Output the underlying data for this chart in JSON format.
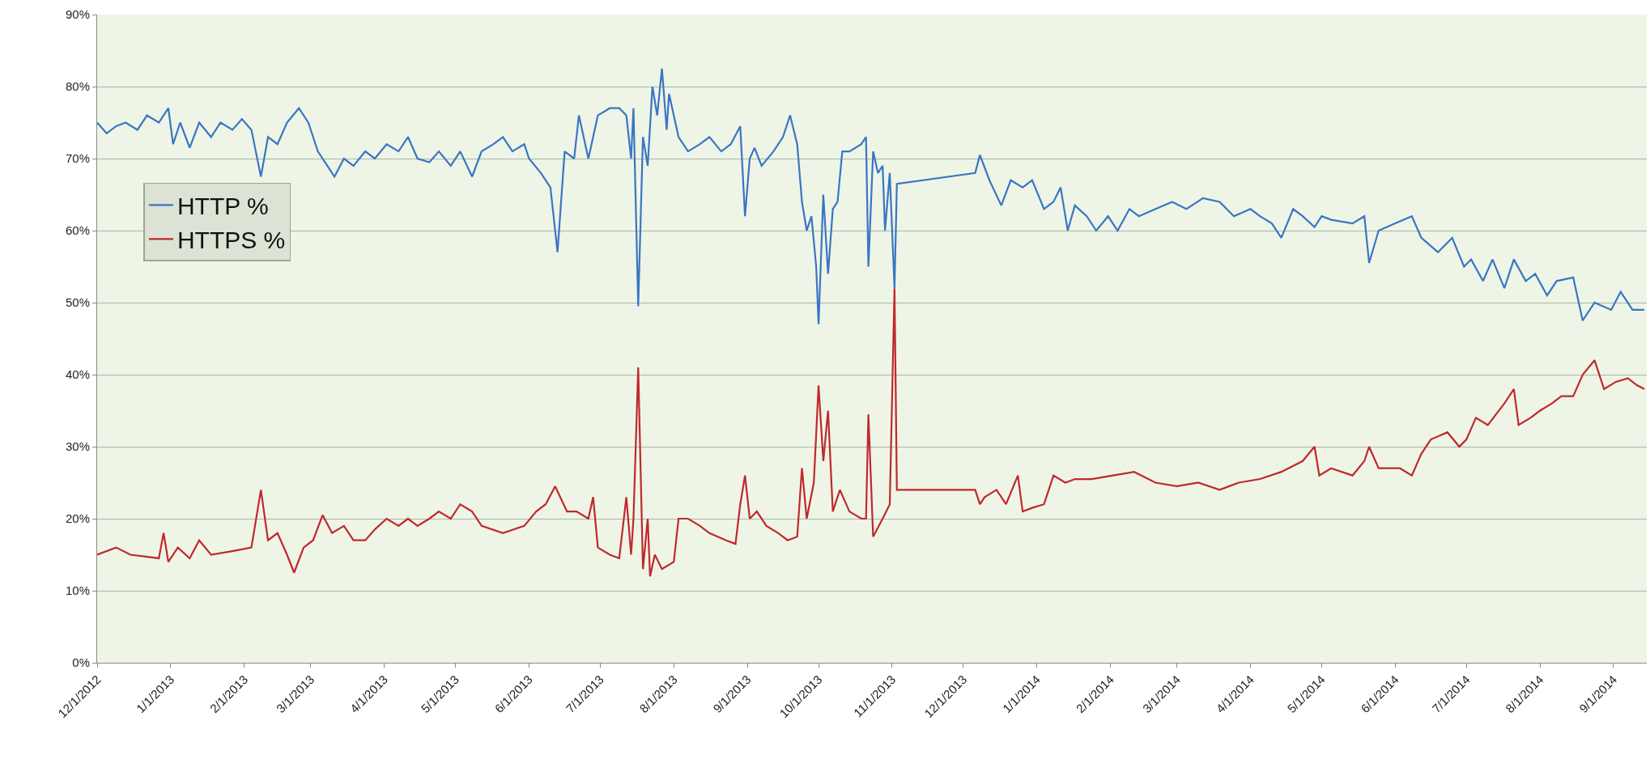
{
  "chart_data": {
    "type": "line",
    "x": [
      "2012-12-01",
      "2012-12-05",
      "2012-12-09",
      "2012-12-13",
      "2012-12-18",
      "2012-12-22",
      "2012-12-27",
      "2012-12-31",
      "2013-01-02",
      "2013-01-05",
      "2013-01-09",
      "2013-01-13",
      "2013-01-18",
      "2013-01-22",
      "2013-01-27",
      "2013-01-31",
      "2013-02-04",
      "2013-02-08",
      "2013-02-11",
      "2013-02-15",
      "2013-02-19",
      "2013-02-24",
      "2013-02-28",
      "2013-03-04",
      "2013-03-08",
      "2013-03-11",
      "2013-03-15",
      "2013-03-19",
      "2013-03-24",
      "2013-03-28",
      "2013-04-02",
      "2013-04-07",
      "2013-04-11",
      "2013-04-15",
      "2013-04-20",
      "2013-04-24",
      "2013-04-29",
      "2013-05-03",
      "2013-05-08",
      "2013-05-12",
      "2013-05-17",
      "2013-05-21",
      "2013-05-25",
      "2013-05-30",
      "2013-06-01",
      "2013-06-06",
      "2013-06-10",
      "2013-06-13",
      "2013-06-16",
      "2013-06-20",
      "2013-06-22",
      "2013-06-26",
      "2013-06-30",
      "2013-07-05",
      "2013-07-09",
      "2013-07-12",
      "2013-07-14",
      "2013-07-15",
      "2013-07-17",
      "2013-07-19",
      "2013-07-21",
      "2013-07-23",
      "2013-07-25",
      "2013-07-27",
      "2013-07-29",
      "2013-07-30",
      "2013-08-03",
      "2013-08-07",
      "2013-08-12",
      "2013-08-16",
      "2013-08-21",
      "2013-08-25",
      "2013-08-29",
      "2013-08-31",
      "2013-09-02",
      "2013-09-04",
      "2013-09-07",
      "2013-09-12",
      "2013-09-16",
      "2013-09-19",
      "2013-09-22",
      "2013-09-24",
      "2013-09-26",
      "2013-09-28",
      "2013-09-30",
      "2013-10-01",
      "2013-10-03",
      "2013-10-05",
      "2013-10-07",
      "2013-10-09",
      "2013-10-11",
      "2013-10-14",
      "2013-10-19",
      "2013-10-21",
      "2013-10-22",
      "2013-10-24",
      "2013-10-26",
      "2013-10-28",
      "2013-10-29",
      "2013-10-31",
      "2013-11-02",
      "2013-11-03",
      "2013-12-06",
      "2013-12-08",
      "2013-12-12",
      "2013-12-17",
      "2013-12-21",
      "2013-12-26",
      "2013-12-30",
      "2014-01-04",
      "2014-01-08",
      "2014-01-11",
      "2014-01-14",
      "2014-01-17",
      "2014-01-22",
      "2014-01-26",
      "2014-01-31",
      "2014-02-04",
      "2014-02-09",
      "2014-02-13",
      "2014-02-20",
      "2014-02-27",
      "2014-03-05",
      "2014-03-12",
      "2014-03-19",
      "2014-03-25",
      "2014-04-01",
      "2014-04-05",
      "2014-04-10",
      "2014-04-14",
      "2014-04-19",
      "2014-04-23",
      "2014-04-28",
      "2014-05-01",
      "2014-05-05",
      "2014-05-14",
      "2014-05-19",
      "2014-05-21",
      "2014-05-25",
      "2014-06-01",
      "2014-06-08",
      "2014-06-12",
      "2014-06-19",
      "2014-06-25",
      "2014-06-30",
      "2014-07-03",
      "2014-07-08",
      "2014-07-12",
      "2014-07-17",
      "2014-07-21",
      "2014-07-26",
      "2014-07-30",
      "2014-08-04",
      "2014-08-08",
      "2014-08-15",
      "2014-08-19",
      "2014-08-24",
      "2014-08-31",
      "2014-09-04",
      "2014-09-09",
      "2014-09-14"
    ],
    "series": [
      {
        "name": "HTTP %",
        "color": "#3a75c4",
        "values": [
          75,
          73.5,
          74.5,
          75,
          74,
          76,
          75,
          77,
          72,
          75,
          71.5,
          75,
          73,
          75,
          74,
          75.5,
          74,
          67.5,
          73,
          72,
          75,
          77,
          75,
          71,
          69,
          67.5,
          70,
          69,
          71,
          70,
          72,
          71,
          73,
          70,
          69.5,
          71,
          69,
          71,
          67.5,
          71,
          72,
          73,
          71,
          72,
          70,
          68,
          66,
          57,
          71,
          70,
          76,
          70,
          76,
          77,
          77,
          76,
          70,
          77,
          49.5,
          73,
          69,
          80,
          76,
          82.5,
          74,
          79,
          73,
          71,
          72,
          73,
          71,
          72,
          74.5,
          62,
          70,
          71.5,
          69,
          71,
          73,
          76,
          72,
          64,
          60,
          62,
          55,
          47,
          65,
          54,
          63,
          64,
          71,
          71,
          72,
          73,
          55,
          71,
          68,
          69,
          60,
          68,
          52,
          66.5,
          68,
          70.5,
          67,
          63.5,
          67,
          66,
          67,
          63,
          64,
          66,
          60,
          63.5,
          62,
          60,
          62,
          60,
          63,
          62,
          63,
          64,
          63,
          64.5,
          64,
          62,
          63,
          62,
          61,
          59,
          63,
          62,
          60.5,
          62,
          61.5,
          61,
          62,
          55.5,
          60,
          61,
          62,
          59,
          57,
          59,
          55,
          56,
          53,
          56,
          52,
          56,
          53,
          54,
          51,
          53,
          53.5,
          47.5,
          50,
          49,
          51.5,
          49,
          49
        ]
      },
      {
        "name": "HTTPS %",
        "color": "#c0282d",
        "x": [
          "2012-12-01",
          "2012-12-09",
          "2012-12-15",
          "2012-12-27",
          "2012-12-29",
          "2012-12-31",
          "2013-01-04",
          "2013-01-09",
          "2013-01-13",
          "2013-01-18",
          "2013-01-27",
          "2013-02-04",
          "2013-02-08",
          "2013-02-11",
          "2013-02-15",
          "2013-02-19",
          "2013-02-22",
          "2013-02-26",
          "2013-03-02",
          "2013-03-06",
          "2013-03-10",
          "2013-03-15",
          "2013-03-19",
          "2013-03-24",
          "2013-03-28",
          "2013-04-02",
          "2013-04-07",
          "2013-04-11",
          "2013-04-15",
          "2013-04-20",
          "2013-04-24",
          "2013-04-29",
          "2013-05-03",
          "2013-05-08",
          "2013-05-12",
          "2013-05-21",
          "2013-05-30",
          "2013-06-04",
          "2013-06-08",
          "2013-06-12",
          "2013-06-17",
          "2013-06-21",
          "2013-06-26",
          "2013-06-28",
          "2013-06-30",
          "2013-07-05",
          "2013-07-09",
          "2013-07-12",
          "2013-07-14",
          "2013-07-15",
          "2013-07-17",
          "2013-07-19",
          "2013-07-21",
          "2013-07-22",
          "2013-07-24",
          "2013-07-27",
          "2013-08-01",
          "2013-08-03",
          "2013-08-07",
          "2013-08-12",
          "2013-08-16",
          "2013-08-23",
          "2013-08-27",
          "2013-08-29",
          "2013-08-31",
          "2013-09-02",
          "2013-09-05",
          "2013-09-09",
          "2013-09-14",
          "2013-09-18",
          "2013-09-22",
          "2013-09-24",
          "2013-09-26",
          "2013-09-29",
          "2013-10-01",
          "2013-10-03",
          "2013-10-05",
          "2013-10-07",
          "2013-10-10",
          "2013-10-14",
          "2013-10-19",
          "2013-10-21",
          "2013-10-22",
          "2013-10-24",
          "2013-10-28",
          "2013-10-31",
          "2013-11-02",
          "2013-11-03",
          "2013-12-06",
          "2013-12-08",
          "2013-12-10",
          "2013-12-15",
          "2013-12-19",
          "2013-12-24",
          "2013-12-26",
          "2013-12-30",
          "2014-01-04",
          "2014-01-08",
          "2014-01-13",
          "2014-01-17",
          "2014-01-24",
          "2014-02-02",
          "2014-02-11",
          "2014-02-20",
          "2014-03-01",
          "2014-03-10",
          "2014-03-19",
          "2014-03-27",
          "2014-04-05",
          "2014-04-14",
          "2014-04-23",
          "2014-04-28",
          "2014-04-30",
          "2014-05-05",
          "2014-05-14",
          "2014-05-19",
          "2014-05-21",
          "2014-05-25",
          "2014-06-03",
          "2014-06-08",
          "2014-06-12",
          "2014-06-16",
          "2014-06-23",
          "2014-06-28",
          "2014-07-01",
          "2014-07-05",
          "2014-07-10",
          "2014-07-17",
          "2014-07-21",
          "2014-07-23",
          "2014-07-28",
          "2014-08-01",
          "2014-08-06",
          "2014-08-10",
          "2014-08-15",
          "2014-08-19",
          "2014-08-24",
          "2014-08-28",
          "2014-09-02",
          "2014-09-07",
          "2014-09-11",
          "2014-09-14"
        ],
        "values": [
          15,
          16,
          15,
          14.5,
          18,
          14,
          16,
          14.5,
          17,
          15,
          15.5,
          16,
          24,
          17,
          18,
          15,
          12.5,
          16,
          17,
          20.5,
          18,
          19,
          17,
          17,
          18.5,
          20,
          19,
          20,
          19,
          20,
          21,
          20,
          22,
          21,
          19,
          18,
          19,
          21,
          22,
          24.5,
          21,
          21,
          20,
          23,
          16,
          15,
          14.5,
          23,
          15,
          20,
          41,
          13,
          20,
          12,
          15,
          13,
          14,
          20,
          20,
          19,
          18,
          17,
          16.5,
          22,
          26,
          20,
          21,
          19,
          18,
          17,
          17.5,
          27,
          20,
          25,
          38.5,
          28,
          35,
          21,
          24,
          21,
          20,
          20,
          34.5,
          17.5,
          20,
          22,
          52,
          24,
          24,
          22,
          23,
          24,
          22,
          26,
          21,
          21.5,
          22,
          26,
          25,
          25.5,
          25.5,
          26,
          26.5,
          25,
          24.5,
          25,
          24,
          25,
          25.5,
          26.5,
          28,
          30,
          26,
          27,
          26,
          28,
          30,
          27,
          27,
          26,
          29,
          31,
          32,
          30,
          31,
          34,
          33,
          36,
          38,
          33,
          34,
          35,
          36,
          37,
          37,
          40,
          42,
          38,
          39,
          39.5,
          38.5,
          38
        ]
      }
    ],
    "xlim": [
      "2012-12-01",
      "2014-09-15"
    ],
    "xticks": [
      {
        "value": "2012-12-01",
        "label": "12/1/2012"
      },
      {
        "value": "2013-01-01",
        "label": "1/1/2013"
      },
      {
        "value": "2013-02-01",
        "label": "2/1/2013"
      },
      {
        "value": "2013-03-01",
        "label": "3/1/2013"
      },
      {
        "value": "2013-04-01",
        "label": "4/1/2013"
      },
      {
        "value": "2013-05-01",
        "label": "5/1/2013"
      },
      {
        "value": "2013-06-01",
        "label": "6/1/2013"
      },
      {
        "value": "2013-07-01",
        "label": "7/1/2013"
      },
      {
        "value": "2013-08-01",
        "label": "8/1/2013"
      },
      {
        "value": "2013-09-01",
        "label": "9/1/2013"
      },
      {
        "value": "2013-10-01",
        "label": "10/1/2013"
      },
      {
        "value": "2013-11-01",
        "label": "11/1/2013"
      },
      {
        "value": "2013-12-01",
        "label": "12/1/2013"
      },
      {
        "value": "2014-01-01",
        "label": "1/1/2014"
      },
      {
        "value": "2014-02-01",
        "label": "2/1/2014"
      },
      {
        "value": "2014-03-01",
        "label": "3/1/2014"
      },
      {
        "value": "2014-04-01",
        "label": "4/1/2014"
      },
      {
        "value": "2014-05-01",
        "label": "5/1/2014"
      },
      {
        "value": "2014-06-01",
        "label": "6/1/2014"
      },
      {
        "value": "2014-07-01",
        "label": "7/1/2014"
      },
      {
        "value": "2014-08-01",
        "label": "8/1/2014"
      },
      {
        "value": "2014-09-01",
        "label": "9/1/2014"
      }
    ],
    "ylim": [
      0,
      90
    ],
    "yticks": [
      {
        "value": 0,
        "label": "0%"
      },
      {
        "value": 10,
        "label": "10%"
      },
      {
        "value": 20,
        "label": "20%"
      },
      {
        "value": 30,
        "label": "30%"
      },
      {
        "value": 40,
        "label": "40%"
      },
      {
        "value": 50,
        "label": "50%"
      },
      {
        "value": 60,
        "label": "60%"
      },
      {
        "value": 70,
        "label": "70%"
      },
      {
        "value": 80,
        "label": "80%"
      },
      {
        "value": 90,
        "label": "90%"
      }
    ],
    "grid": "y",
    "legend": "left",
    "marker": "none",
    "line_style": "solid"
  }
}
